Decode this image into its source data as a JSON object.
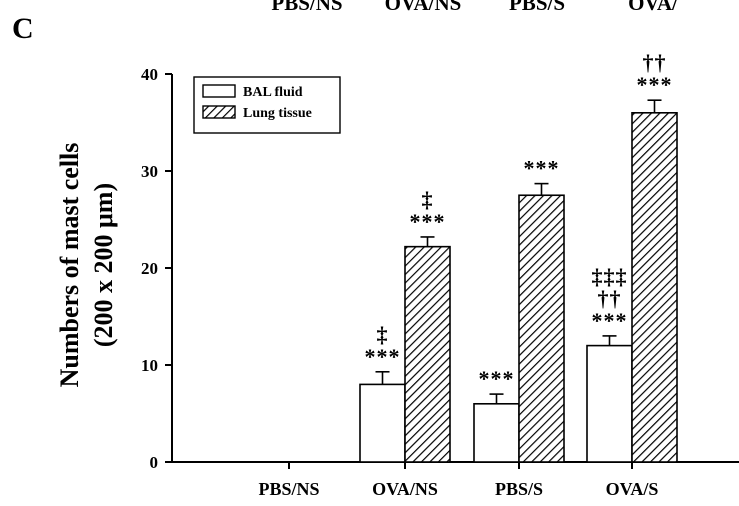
{
  "panel_label": "C",
  "top_labels": [
    "PBS/NS",
    "OVA/NS",
    "PBS/S",
    "OVA/"
  ],
  "chart_data": {
    "type": "bar",
    "categories": [
      "PBS/NS",
      "OVA/NS",
      "PBS/S",
      "OVA/S"
    ],
    "series": [
      {
        "name": "BAL fluid",
        "pattern": "solid-white",
        "values": [
          0,
          8,
          6,
          12
        ],
        "errors": [
          0,
          1.3,
          1.0,
          1.0
        ],
        "annotations": [
          [],
          [
            "‡",
            "***"
          ],
          [
            "***"
          ],
          [
            "‡‡‡",
            "††",
            "***"
          ]
        ]
      },
      {
        "name": "Lung tissue",
        "pattern": "diagonal-hatch",
        "values": [
          0,
          22.2,
          27.5,
          36
        ],
        "errors": [
          0,
          1.0,
          1.2,
          1.3
        ],
        "annotations": [
          [],
          [
            "‡",
            "***"
          ],
          [
            "***"
          ],
          [
            "††",
            "***"
          ]
        ]
      }
    ],
    "ylabel_lines": [
      "Numbers of mast cells",
      "(200 x 200 μm)"
    ],
    "xlabel": "",
    "ylim": [
      0,
      40
    ],
    "yticks": [
      0,
      10,
      20,
      30,
      40
    ],
    "legend": {
      "position": "top-left"
    }
  }
}
